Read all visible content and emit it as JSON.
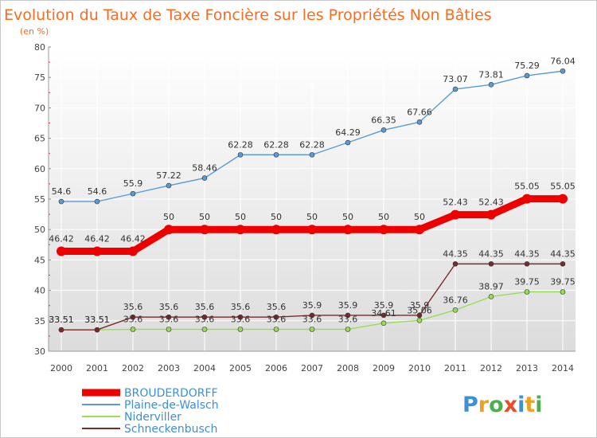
{
  "chart_data": {
    "type": "line",
    "title": "Evolution du Taux de Taxe Foncière sur les Propriétés Non Bâties",
    "subtitle": "(en %)",
    "x": [
      "2000",
      "2001",
      "2002",
      "2003",
      "2004",
      "2005",
      "2006",
      "2007",
      "2008",
      "2009",
      "2010",
      "2011",
      "2012",
      "2013",
      "2014"
    ],
    "ylim": [
      30,
      80
    ],
    "yticks": [
      30,
      35,
      40,
      45,
      50,
      55,
      60,
      65,
      70,
      75,
      80
    ],
    "grid": true,
    "legend_position": "bottom-left",
    "series": [
      {
        "name": "BROUDERDORFF",
        "color": "#ee0000",
        "emphasis": true,
        "values": [
          46.42,
          46.42,
          46.42,
          50,
          50,
          50,
          50,
          50,
          50,
          50,
          50,
          52.43,
          52.43,
          55.05,
          55.05
        ],
        "labels": [
          "46.42",
          "46.42",
          "46.42",
          "50",
          "50",
          "50",
          "50",
          "50",
          "50",
          "50",
          "50",
          "52.43",
          "52.43",
          "55.05",
          "55.05"
        ]
      },
      {
        "name": "Plaine-de-Walsch",
        "color": "#5b9bd5",
        "values": [
          54.6,
          54.6,
          55.9,
          57.22,
          58.46,
          62.28,
          62.28,
          62.28,
          64.29,
          66.35,
          67.66,
          73.07,
          73.81,
          75.29,
          76.04
        ],
        "labels": [
          "54.6",
          "54.6",
          "55.9",
          "57.22",
          "58.46",
          "62.28",
          "62.28",
          "62.28",
          "64.29",
          "66.35",
          "67.66",
          "73.07",
          "73.81",
          "75.29",
          "76.04"
        ]
      },
      {
        "name": "Niderviller",
        "color": "#99dd55",
        "values": [
          33.51,
          33.51,
          33.6,
          33.6,
          33.6,
          33.6,
          33.6,
          33.6,
          33.6,
          34.61,
          35.06,
          36.76,
          38.97,
          39.75,
          39.75
        ],
        "labels": [
          "33.51",
          "33.51",
          "33.6",
          "33.6",
          "33.6",
          "33.6",
          "33.6",
          "33.6",
          "33.6",
          "34.61",
          "35.06",
          "36.76",
          "38.97",
          "39.75",
          "39.75"
        ]
      },
      {
        "name": "Schneckenbusch",
        "color": "#7a2a2a",
        "values": [
          33.51,
          33.51,
          35.6,
          35.6,
          35.6,
          35.6,
          35.6,
          35.9,
          35.9,
          35.9,
          35.9,
          44.35,
          44.35,
          44.35,
          44.35
        ],
        "labels": [
          "33.51",
          "33.51",
          "35.6",
          "35.6",
          "35.6",
          "35.6",
          "35.6",
          "35.9",
          "35.9",
          "35.9",
          "35.9",
          "44.35",
          "44.35",
          "44.35",
          "44.35"
        ]
      }
    ]
  },
  "logo": {
    "letters": [
      {
        "ch": "P",
        "color": "#3f8fd2"
      },
      {
        "ch": "r",
        "color": "#f0a020"
      },
      {
        "ch": "o",
        "color": "#4cae4c"
      },
      {
        "ch": "x",
        "color": "#e84c2a"
      },
      {
        "ch": "i",
        "color": "#3f8fd2"
      },
      {
        "ch": "t",
        "color": "#f0a020"
      },
      {
        "ch": "i",
        "color": "#4cae4c"
      }
    ]
  }
}
